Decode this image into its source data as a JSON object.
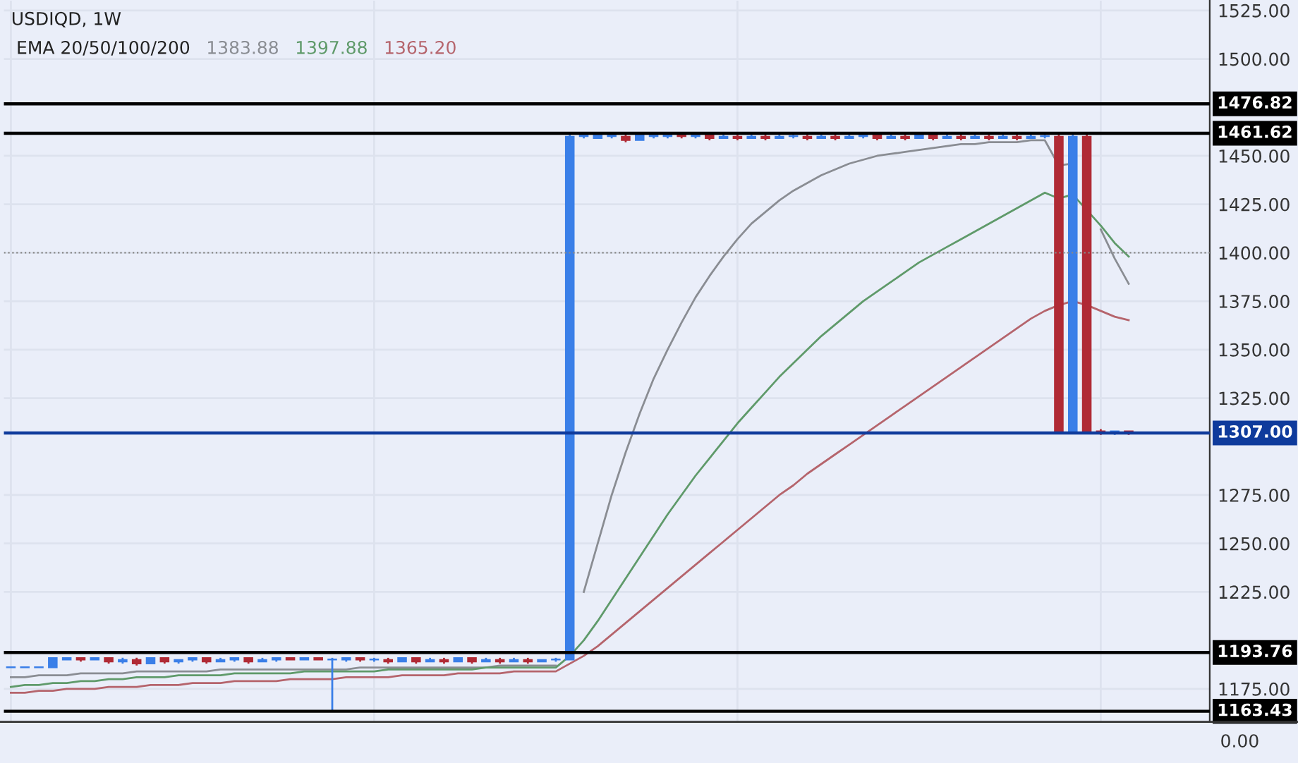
{
  "chart_data": {
    "type": "candlestick",
    "title": "USDIQD, 1W",
    "legend_title": "EMA 20/50/100/200",
    "grid": true,
    "tick_labels": "y",
    "categories": [
      null,
      null,
      null,
      null,
      null,
      null,
      null,
      null,
      null,
      null,
      null,
      null,
      null,
      null,
      null,
      null,
      null,
      null,
      null,
      null,
      null,
      null,
      null,
      null,
      null,
      null,
      null,
      null,
      null,
      null,
      null,
      null,
      null,
      null,
      null,
      null,
      null,
      null,
      null,
      null,
      null,
      null,
      null,
      null,
      null,
      null,
      null,
      null,
      null,
      null,
      null,
      null,
      null,
      null,
      null,
      null,
      null,
      null,
      null,
      null,
      null,
      null,
      null,
      null,
      null,
      null,
      null,
      null,
      null,
      null,
      null,
      null,
      null,
      null,
      null,
      null,
      null,
      null,
      null,
      null,
      null
    ],
    "ohlc": [
      [
        1186,
        1186,
        1186,
        1186
      ],
      [
        1186,
        1186,
        1186,
        1186
      ],
      [
        1186,
        1186,
        1186,
        1186
      ],
      [
        1186,
        1191,
        1186,
        1191
      ],
      [
        1190,
        1191,
        1190,
        1191
      ],
      [
        1191,
        1191,
        1189,
        1190
      ],
      [
        1190,
        1191,
        1190,
        1191
      ],
      [
        1191,
        1191,
        1188,
        1189
      ],
      [
        1189,
        1191,
        1188,
        1190
      ],
      [
        1190,
        1191,
        1187,
        1188
      ],
      [
        1188,
        1191,
        1188,
        1191
      ],
      [
        1191,
        1191,
        1188,
        1189
      ],
      [
        1189,
        1190,
        1188,
        1190
      ],
      [
        1190,
        1191,
        1189,
        1191
      ],
      [
        1191,
        1191,
        1188,
        1189
      ],
      [
        1189,
        1191,
        1189,
        1190
      ],
      [
        1190,
        1191,
        1189,
        1191
      ],
      [
        1191,
        1191,
        1188,
        1189
      ],
      [
        1189,
        1191,
        1189,
        1190
      ],
      [
        1190,
        1191,
        1189,
        1191
      ],
      [
        1191,
        1191,
        1190,
        1190
      ],
      [
        1190,
        1191,
        1190,
        1191
      ],
      [
        1191,
        1191,
        1190,
        1190
      ],
      [
        1190,
        1191,
        1163,
        1190
      ],
      [
        1190,
        1191,
        1189,
        1191
      ],
      [
        1191,
        1191,
        1189,
        1190
      ],
      [
        1190,
        1191,
        1189,
        1190
      ],
      [
        1190,
        1191,
        1188,
        1189
      ],
      [
        1189,
        1191,
        1189,
        1191
      ],
      [
        1191,
        1191,
        1188,
        1189
      ],
      [
        1189,
        1191,
        1189,
        1190
      ],
      [
        1190,
        1191,
        1188,
        1189
      ],
      [
        1189,
        1191,
        1189,
        1191
      ],
      [
        1191,
        1191,
        1188,
        1189
      ],
      [
        1189,
        1191,
        1189,
        1190
      ],
      [
        1190,
        1191,
        1188,
        1189
      ],
      [
        1189,
        1191,
        1189,
        1190
      ],
      [
        1190,
        1191,
        1188,
        1189
      ],
      [
        1189,
        1190,
        1189,
        1190
      ],
      [
        1190,
        1191,
        1189,
        1190
      ],
      [
        1190,
        1462,
        1190,
        1460
      ],
      [
        1460,
        1462,
        1459,
        1461
      ],
      [
        1459,
        1462,
        1459,
        1461
      ],
      [
        1460,
        1462,
        1459,
        1461
      ],
      [
        1460,
        1461,
        1457,
        1458
      ],
      [
        1458,
        1461,
        1458,
        1461
      ],
      [
        1460,
        1462,
        1459,
        1461
      ],
      [
        1460,
        1461,
        1459,
        1461
      ],
      [
        1461,
        1461,
        1459,
        1460
      ],
      [
        1460,
        1461,
        1459,
        1461
      ],
      [
        1461,
        1461,
        1458,
        1459
      ],
      [
        1459,
        1461,
        1459,
        1460
      ],
      [
        1460,
        1461,
        1458,
        1459
      ],
      [
        1459,
        1461,
        1459,
        1460
      ],
      [
        1460,
        1461,
        1458,
        1459
      ],
      [
        1459,
        1461,
        1459,
        1460
      ],
      [
        1460,
        1461,
        1459,
        1460
      ],
      [
        1460,
        1461,
        1458,
        1459
      ],
      [
        1459,
        1461,
        1459,
        1460
      ],
      [
        1460,
        1461,
        1458,
        1459
      ],
      [
        1459,
        1461,
        1459,
        1460
      ],
      [
        1460,
        1461,
        1459,
        1461
      ],
      [
        1461,
        1461,
        1458,
        1459
      ],
      [
        1459,
        1461,
        1459,
        1460
      ],
      [
        1460,
        1461,
        1458,
        1459
      ],
      [
        1459,
        1461,
        1459,
        1461
      ],
      [
        1461,
        1461,
        1458,
        1459
      ],
      [
        1459,
        1461,
        1459,
        1460
      ],
      [
        1460,
        1461,
        1458,
        1459
      ],
      [
        1459,
        1461,
        1459,
        1460
      ],
      [
        1460,
        1461,
        1458,
        1459
      ],
      [
        1459,
        1461,
        1459,
        1460
      ],
      [
        1460,
        1461,
        1458,
        1459
      ],
      [
        1459,
        1461,
        1459,
        1460
      ],
      [
        1460,
        1461,
        1459,
        1460
      ],
      [
        1460,
        1461,
        1307,
        1308
      ],
      [
        1308,
        1461,
        1307,
        1460
      ],
      [
        1460,
        1461,
        1307,
        1308
      ],
      [
        1308,
        1309,
        1306,
        1307
      ],
      [
        1307,
        1308,
        1306,
        1308
      ],
      [
        1308,
        1308,
        1306,
        1307
      ]
    ],
    "series": [
      {
        "type": "line",
        "name": "1383.88",
        "color": "#8a8d93",
        "values": [
          1181,
          1181,
          1182,
          1182,
          1182,
          1183,
          1183,
          1183,
          1183,
          1184,
          1184,
          1184,
          1184,
          1184,
          1184,
          1185,
          1185,
          1185,
          1185,
          1185,
          1185,
          1185,
          1185,
          1185,
          1185,
          1186,
          1186,
          1186,
          1186,
          1186,
          1186,
          1186,
          1186,
          1186,
          1186,
          1187,
          1187,
          1187,
          1187,
          1187,
          null,
          1225,
          1250,
          1275,
          1297,
          1317,
          1335,
          1350,
          1364,
          1377,
          1388,
          1398,
          1407,
          1415,
          1421,
          1427,
          1432,
          1436,
          1440,
          1443,
          1446,
          1448,
          1450,
          1451,
          1452,
          1453,
          1454,
          1455,
          1456,
          1456,
          1457,
          1457,
          1457,
          1458,
          1458,
          1445,
          1446,
          null,
          1412,
          1397,
          1384
        ]
      },
      {
        "type": "line",
        "name": "1397.88",
        "color": "#5f9a6a",
        "values": [
          1176,
          1177,
          1177,
          1178,
          1178,
          1179,
          1179,
          1180,
          1180,
          1181,
          1181,
          1181,
          1182,
          1182,
          1182,
          1182,
          1183,
          1183,
          1183,
          1183,
          1183,
          1184,
          1184,
          1184,
          1184,
          1184,
          1184,
          1185,
          1185,
          1185,
          1185,
          1185,
          1185,
          1185,
          1186,
          1186,
          1186,
          1186,
          1186,
          1186,
          1192,
          1200,
          1210,
          1221,
          1232,
          1243,
          1254,
          1265,
          1275,
          1285,
          1294,
          1303,
          1312,
          1320,
          1328,
          1336,
          1343,
          1350,
          1357,
          1363,
          1369,
          1375,
          1380,
          1385,
          1390,
          1395,
          1399,
          1403,
          1407,
          1411,
          1415,
          1419,
          1423,
          1427,
          1431,
          1428,
          1430,
          1422,
          1414,
          1405,
          1398
        ]
      },
      {
        "type": "line",
        "name": "1365.20",
        "color": "#b5646c",
        "values": [
          1173,
          1173,
          1174,
          1174,
          1175,
          1175,
          1175,
          1176,
          1176,
          1176,
          1177,
          1177,
          1177,
          1178,
          1178,
          1178,
          1179,
          1179,
          1179,
          1179,
          1180,
          1180,
          1180,
          1180,
          1181,
          1181,
          1181,
          1181,
          1182,
          1182,
          1182,
          1182,
          1183,
          1183,
          1183,
          1183,
          1184,
          1184,
          1184,
          1184,
          1188,
          1192,
          1197,
          1203,
          1209,
          1215,
          1221,
          1227,
          1233,
          1239,
          1245,
          1251,
          1257,
          1263,
          1269,
          1275,
          1280,
          1286,
          1291,
          1296,
          1301,
          1306,
          1311,
          1316,
          1321,
          1326,
          1331,
          1336,
          1341,
          1346,
          1351,
          1356,
          1361,
          1366,
          1370,
          1373,
          1375,
          1373,
          1370,
          1367,
          1365.2
        ]
      }
    ],
    "ylim": [
      1158,
      1530
    ],
    "yticks": [
      {
        "value": 1175,
        "label": "1175.00"
      },
      {
        "value": 1225,
        "label": "1225.00"
      },
      {
        "value": 1250,
        "label": "1250.00"
      },
      {
        "value": 1275,
        "label": "1275.00"
      },
      {
        "value": 1325,
        "label": "1325.00"
      },
      {
        "value": 1350,
        "label": "1350.00"
      },
      {
        "value": 1375,
        "label": "1375.00"
      },
      {
        "value": 1400,
        "label": "1400.00"
      },
      {
        "value": 1425,
        "label": "1425.00"
      },
      {
        "value": 1450,
        "label": "1450.00"
      },
      {
        "value": 1500,
        "label": "1500.00"
      },
      {
        "value": 1525,
        "label": "1525.00"
      }
    ],
    "ref_lines": [
      {
        "axis": "y",
        "value": 1476.82,
        "label": "1476.82",
        "color": "#000000"
      },
      {
        "axis": "y",
        "value": 1461.62,
        "label": "1461.62",
        "color": "#000000"
      },
      {
        "axis": "y",
        "value": 1307.0,
        "label": "1307.00",
        "color": "#0f3b9c"
      },
      {
        "axis": "y",
        "value": 1193.76,
        "label": "1193.76",
        "color": "#000000"
      },
      {
        "axis": "y",
        "value": 1163.43,
        "label": "1163.43",
        "color": "#000000"
      },
      {
        "axis": "y",
        "value": 1400,
        "line_style": "dotted",
        "color": "#888888"
      }
    ],
    "annotations": [
      "0.00"
    ]
  }
}
